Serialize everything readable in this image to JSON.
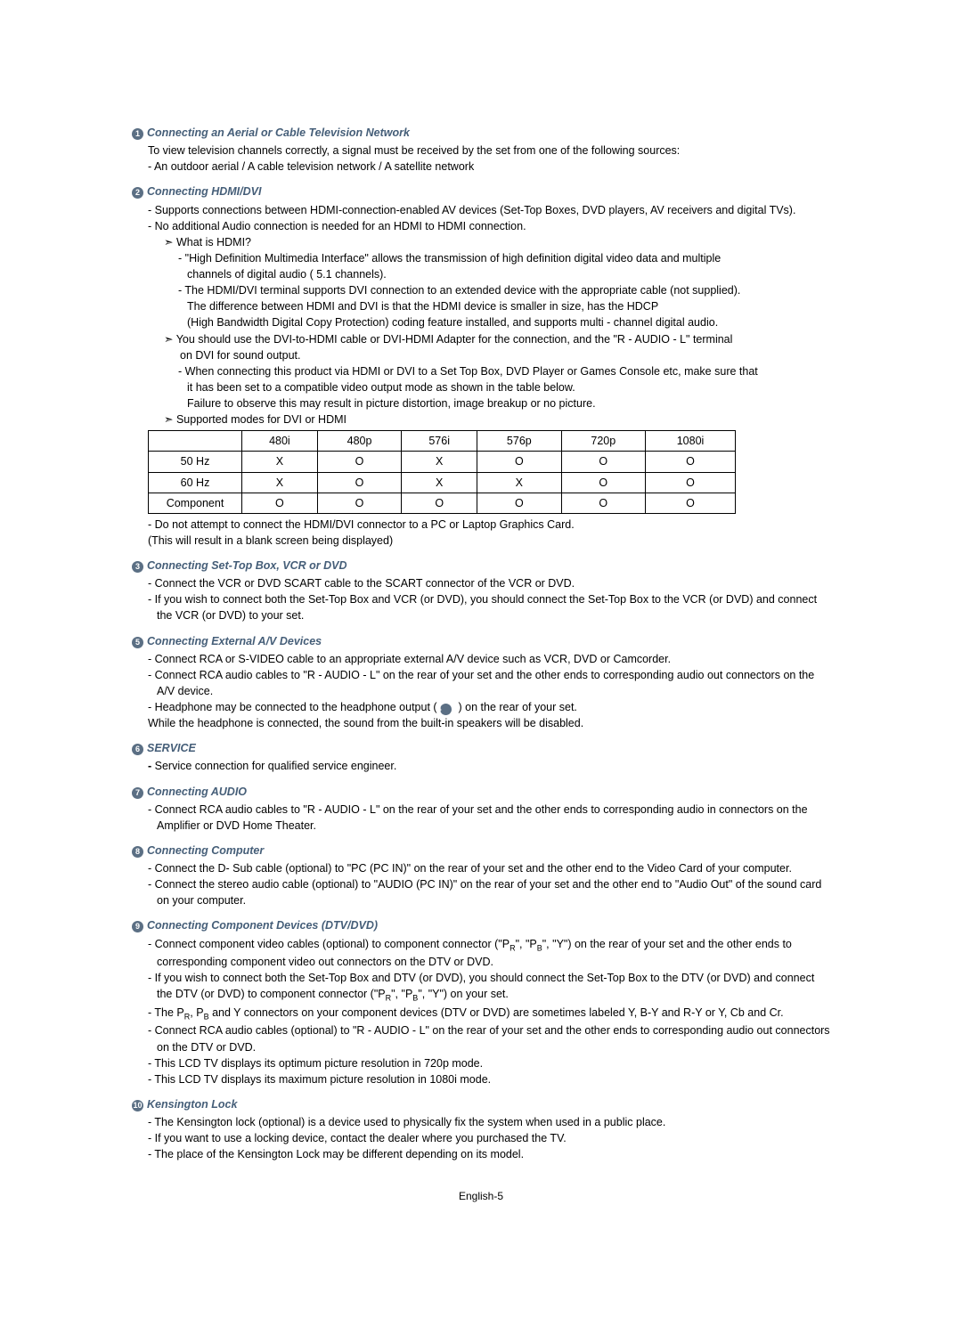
{
  "colors": {
    "bullet_bg": "#5b6f84",
    "bullet_fg": "#ffffff",
    "text": "#000000",
    "title": "#455e78"
  },
  "sections": [
    {
      "num": "1",
      "title": "Connecting an Aerial or Cable Television Network",
      "lines": [
        {
          "cls": "line",
          "text": "To view television channels correctly, a signal must be received by the set from one of the following sources:"
        },
        {
          "cls": "dash",
          "text": "An outdoor aerial / A cable television network / A satellite network"
        }
      ]
    },
    {
      "num": "2",
      "title": "Connecting HDMI/DVI",
      "lines": [
        {
          "cls": "dash",
          "text": "Supports connections between HDMI-connection-enabled AV devices (Set-Top Boxes, DVD players, AV receivers and digital TVs)."
        },
        {
          "cls": "dash",
          "text": "No additional Audio connection is needed for an HDMI to HDMI connection."
        },
        {
          "cls": "arrow-line",
          "text": "What is HDMI?"
        },
        {
          "cls": "sub-dash",
          "text": "\"High Definition Multimedia Interface\" allows the transmission of high definition digital video data and multiple"
        },
        {
          "cls": "sub-cont",
          "text": "channels of digital audio ( 5.1 channels)."
        },
        {
          "cls": "sub-dash",
          "text": "The HDMI/DVI terminal supports DVI connection to an extended device with the appropriate cable (not supplied)."
        },
        {
          "cls": "sub-cont",
          "text": "The difference between HDMI and DVI is that the HDMI device is smaller in size, has the HDCP"
        },
        {
          "cls": "sub-cont",
          "text": "(High Bandwidth Digital Copy Protection) coding feature installed, and supports multi - channel digital audio."
        },
        {
          "cls": "arrow-line",
          "text": "You should use the DVI-to-HDMI cable or DVI-HDMI Adapter for the connection, and the \"R - AUDIO - L\" terminal"
        },
        {
          "cls": "arrow-cont",
          "text": "on  DVI for sound output."
        },
        {
          "cls": "sub-dash",
          "text": "When connecting this product via HDMI or DVI to a Set Top Box, DVD Player or Games Console etc, make sure that"
        },
        {
          "cls": "sub-cont",
          "text": "it has been set to a compatible video output mode as shown in the table below."
        },
        {
          "cls": "sub-cont",
          "text": "Failure to observe this may result in picture distortion, image breakup or no picture."
        },
        {
          "cls": "arrow-line",
          "text": "Supported modes for DVI or HDMI"
        }
      ],
      "table": {
        "headers": [
          "",
          "480i",
          "480p",
          "576i",
          "576p",
          "720p",
          "1080i"
        ],
        "rows": [
          [
            "50 Hz",
            "X",
            "O",
            "X",
            "O",
            "O",
            "O"
          ],
          [
            "60 Hz",
            "X",
            "O",
            "X",
            "X",
            "O",
            "O"
          ],
          [
            "Component",
            "O",
            "O",
            "O",
            "O",
            "O",
            "O"
          ]
        ]
      },
      "after_table": [
        {
          "cls": "dash",
          "text": "Do not attempt to connect the HDMI/DVI connector to a PC or Laptop Graphics Card."
        },
        {
          "cls": "line",
          "text": "  (This will result in a blank screen being displayed)"
        }
      ]
    },
    {
      "num": "3",
      "title": "Connecting Set-Top Box, VCR or DVD",
      "lines": [
        {
          "cls": "dash",
          "text": "Connect the VCR or DVD SCART cable to the SCART connector of the VCR or DVD."
        },
        {
          "cls": "dash",
          "text": "If you wish to connect both the Set-Top Box and VCR (or DVD), you should connect the Set-Top Box to the VCR (or DVD) and connect the VCR (or DVD) to your set."
        }
      ]
    },
    {
      "num": "5",
      "title": "Connecting External A/V Devices",
      "lines": [
        {
          "cls": "dash",
          "text": "Connect RCA or S-VIDEO cable to an appropriate external A/V device such as VCR, DVD or Camcorder."
        },
        {
          "cls": "dash",
          "text": "Connect RCA audio cables to \"R - AUDIO - L\" on the rear of your set and the other ends to corresponding audio out connectors on the A/V device."
        },
        {
          "cls": "dash",
          "html": "Headphone may be connected to the headphone output ( <span class='bullet-num inline-bullet' data-name='headphone-bullet'>4</span> ) on the rear of your set."
        },
        {
          "cls": "line",
          "text": "  While the headphone is connected, the sound from the built-in speakers will be disabled."
        }
      ]
    },
    {
      "num": "6",
      "title": "SERVICE",
      "lines": [
        {
          "cls": "line",
          "html": "<b>- </b>Service connection for qualified service engineer."
        }
      ]
    },
    {
      "num": "7",
      "title": "Connecting AUDIO",
      "lines": [
        {
          "cls": "dash",
          "text": "Connect RCA audio cables to \"R - AUDIO - L\" on the rear of your set and the other ends to corresponding audio in connectors on the Amplifier or DVD Home Theater."
        }
      ]
    },
    {
      "num": "8",
      "title": "Connecting Computer",
      "lines": [
        {
          "cls": "dash",
          "text": "Connect the D- Sub cable (optional) to \"PC (PC IN)\" on the rear of your set and the other end to the Video Card of your computer."
        },
        {
          "cls": "dash",
          "text": "Connect the stereo audio cable (optional) to \"AUDIO (PC IN)\" on the rear of your set and the other end to \"Audio Out\" of the sound card on your computer."
        }
      ]
    },
    {
      "num": "9",
      "title": "Connecting Component Devices (DTV/DVD)",
      "lines": [
        {
          "cls": "dash",
          "html": "Connect component video cables (optional) to component connector (\"P<span class='sub-r'>R</span>\", \"P<span class='sub-r'>B</span>\", \"Y\") on the rear of your set and the other ends to corresponding component video out connectors on the DTV or DVD."
        },
        {
          "cls": "dash",
          "html": "If you wish to connect both the Set-Top Box and DTV (or DVD), you should connect the Set-Top Box to the DTV (or DVD) and connect the DTV (or DVD) to component connector (\"P<span class='sub-r'>R</span>\", \"P<span class='sub-r'>B</span>\", \"Y\") on your set."
        },
        {
          "cls": "dash",
          "html": "The P<span class='sub-r'>R</span>, P<span class='sub-r'>B</span> and Y connectors on your component devices (DTV or DVD) are sometimes labeled Y, B-Y and R-Y or Y, Cb and Cr."
        },
        {
          "cls": "dash",
          "text": "Connect RCA audio cables (optional) to \"R - AUDIO - L\" on the rear of your set and the other ends to corresponding audio out connectors on the DTV or DVD."
        },
        {
          "cls": "dash",
          "text": "This LCD TV displays its optimum picture resolution in 720p mode."
        },
        {
          "cls": "dash",
          "text": "This LCD TV displays its maximum picture resolution in 1080i mode."
        }
      ]
    },
    {
      "num": "10",
      "title": "Kensington Lock",
      "lines": [
        {
          "cls": "dash",
          "text": "The Kensington lock (optional) is a device used to physically fix the system when used in a public place."
        },
        {
          "cls": "dash",
          "text": "If you want to use a locking device, contact the dealer where you purchased the TV."
        },
        {
          "cls": "dash",
          "text": "The place of the  Kensington Lock may be different depending on its model."
        }
      ]
    }
  ],
  "footer": "English-5"
}
